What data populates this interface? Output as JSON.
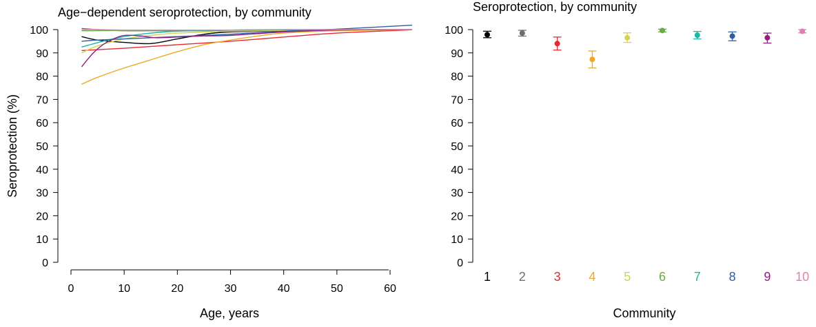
{
  "chart_data": [
    {
      "type": "line",
      "title": "Age−dependent seroprotection, by community",
      "xlabel": "Age, years",
      "ylabel": "Seroprotection (%)",
      "xlim": [
        0,
        65
      ],
      "ylim": [
        0,
        100
      ],
      "xticks": [
        "0",
        "10",
        "20",
        "30",
        "40",
        "50",
        "60"
      ],
      "yticks": [
        "0",
        "10",
        "20",
        "30",
        "40",
        "50",
        "60",
        "70",
        "80",
        "90",
        "100"
      ],
      "grid": false,
      "series": [
        {
          "color": "#000000",
          "x": [
            2,
            5,
            10,
            15,
            20,
            25,
            30,
            40,
            50,
            65
          ],
          "values": [
            97,
            95.5,
            94.5,
            94,
            96,
            98,
            99,
            99.5,
            99.8,
            100
          ]
        },
        {
          "color": "#6e6e6e",
          "x": [
            2,
            5,
            10,
            15,
            20,
            25,
            30,
            40,
            50,
            65
          ],
          "values": [
            100.5,
            100,
            99.5,
            99.5,
            99.5,
            99.5,
            99.7,
            99.8,
            99.9,
            100
          ]
        },
        {
          "color": "#e8282e",
          "x": [
            2,
            10,
            20,
            30,
            40,
            50,
            65
          ],
          "values": [
            91,
            92,
            93.5,
            95,
            96.8,
            98.5,
            100
          ]
        },
        {
          "color": "#eea924",
          "x": [
            2,
            5,
            10,
            15,
            20,
            25,
            30,
            35,
            40,
            50,
            65
          ],
          "values": [
            76.5,
            79.5,
            83.5,
            87,
            90.5,
            93.5,
            95.5,
            97.2,
            98.5,
            99.5,
            100
          ]
        },
        {
          "color": "#d4d24e",
          "x": [
            2,
            5,
            10,
            15,
            20,
            30,
            40,
            50,
            65
          ],
          "values": [
            90,
            93,
            96,
            97.5,
            98.5,
            99.3,
            99.6,
            99.8,
            100
          ]
        },
        {
          "color": "#69ab45",
          "x": [
            2,
            10,
            20,
            30,
            40,
            50,
            65
          ],
          "values": [
            99.5,
            99.6,
            99.7,
            99.8,
            99.9,
            100,
            100
          ]
        },
        {
          "color": "#1fb5a5",
          "x": [
            2,
            6,
            10,
            15,
            20,
            30,
            40,
            50,
            65
          ],
          "values": [
            92.5,
            95,
            97,
            98.5,
            99.3,
            99.8,
            100,
            100,
            100
          ]
        },
        {
          "color": "#2d5ea3",
          "x": [
            2,
            5,
            10,
            15,
            20,
            25,
            30,
            40,
            50,
            65
          ],
          "values": [
            95,
            95.5,
            96,
            96.5,
            97,
            97.5,
            98,
            99.3,
            100.2,
            102
          ]
        },
        {
          "color": "#8c1f7f",
          "x": [
            2,
            4,
            6,
            8,
            10,
            13,
            16,
            20,
            25,
            30,
            40,
            50,
            65
          ],
          "values": [
            84,
            89.5,
            93.5,
            96,
            97.5,
            97.3,
            96.5,
            96.8,
            97.3,
            97.5,
            99,
            99.8,
            100
          ]
        },
        {
          "color": "#e07fb2",
          "x": [
            2,
            5,
            10,
            15,
            20,
            30,
            40,
            50,
            65
          ],
          "values": [
            100,
            100,
            99.8,
            99.8,
            99.8,
            99.8,
            99.9,
            100,
            100
          ]
        }
      ]
    },
    {
      "type": "scatter",
      "title": "Seroprotection, by community",
      "xlabel": "Community",
      "ylabel": "",
      "ylim": [
        0,
        100
      ],
      "yticks": [
        "0",
        "10",
        "20",
        "30",
        "40",
        "50",
        "60",
        "70",
        "80",
        "90",
        "100"
      ],
      "grid": false,
      "categories": [
        "1",
        "2",
        "3",
        "4",
        "5",
        "6",
        "7",
        "8",
        "9",
        "10"
      ],
      "colors": [
        "#000000",
        "#6e6e6e",
        "#e8282e",
        "#eea924",
        "#d4d24e",
        "#69ab45",
        "#1fb5a5",
        "#2d5ea3",
        "#8c1f7f",
        "#e07fb2"
      ],
      "values": [
        97.8,
        98.5,
        94,
        87.2,
        96.5,
        99.6,
        97.6,
        97.2,
        96.5,
        99.3
      ],
      "lower": [
        96.5,
        97.2,
        91.2,
        83.5,
        94.5,
        99.0,
        96.0,
        95.2,
        94.2,
        98.6
      ],
      "upper": [
        99.3,
        99.7,
        96.8,
        90.8,
        98.6,
        100.2,
        99.2,
        99.0,
        98.5,
        100.0
      ]
    }
  ]
}
